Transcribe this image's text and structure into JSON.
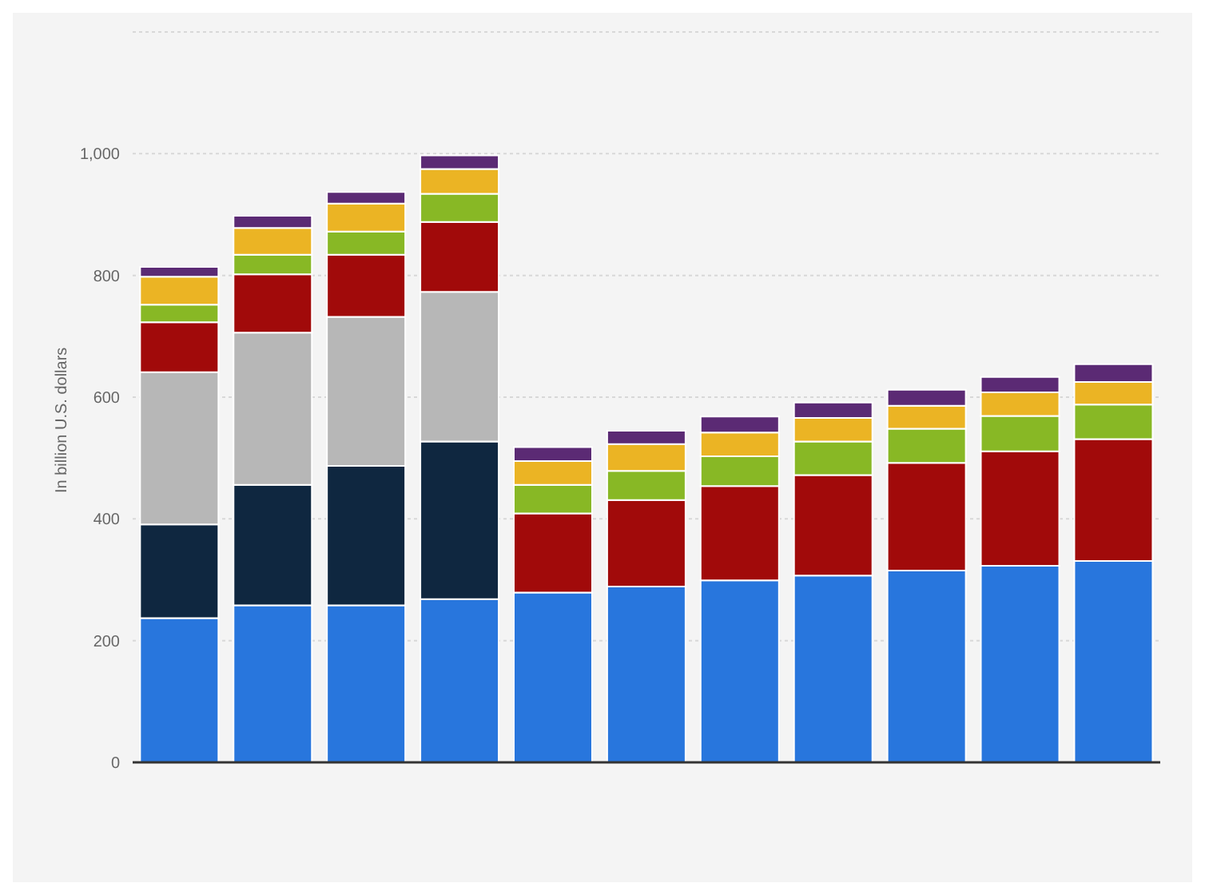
{
  "chart_data": {
    "type": "bar",
    "stacked": true,
    "ylabel": "In billion U.S. dollars",
    "categories": [
      null,
      null,
      null,
      null,
      null,
      null,
      null,
      null,
      null,
      null,
      null
    ],
    "ylim": [
      0,
      1200
    ],
    "yticks": [
      0,
      200,
      400,
      600,
      800,
      {
        "value": 1000,
        "label": "1,000"
      },
      {
        "value": 1200,
        "label": null
      }
    ],
    "grid": "y",
    "series": [
      {
        "color": "#2876dd",
        "values": [
          237,
          258,
          258,
          268,
          279,
          289,
          299,
          307,
          315,
          323,
          331
        ]
      },
      {
        "color": "#0f2740",
        "values": [
          154,
          198,
          229,
          259,
          null,
          null,
          null,
          null,
          null,
          null,
          null
        ]
      },
      {
        "color": "#b7b7b7",
        "values": [
          250,
          250,
          245,
          246,
          null,
          null,
          null,
          null,
          null,
          null,
          null
        ]
      },
      {
        "color": "#a10a0a",
        "values": [
          82,
          96,
          102,
          115,
          130,
          142,
          155,
          165,
          177,
          188,
          200
        ]
      },
      {
        "color": "#88b825",
        "values": [
          29,
          32,
          38,
          46,
          47,
          48,
          49,
          55,
          56,
          58,
          57
        ]
      },
      {
        "color": "#ebb424",
        "values": [
          46,
          44,
          46,
          41,
          39,
          44,
          39,
          39,
          38,
          39,
          37
        ]
      },
      {
        "color": "#5b2a74",
        "values": [
          16,
          20,
          19,
          22,
          23,
          22,
          26,
          25,
          26,
          25,
          29
        ]
      }
    ]
  }
}
